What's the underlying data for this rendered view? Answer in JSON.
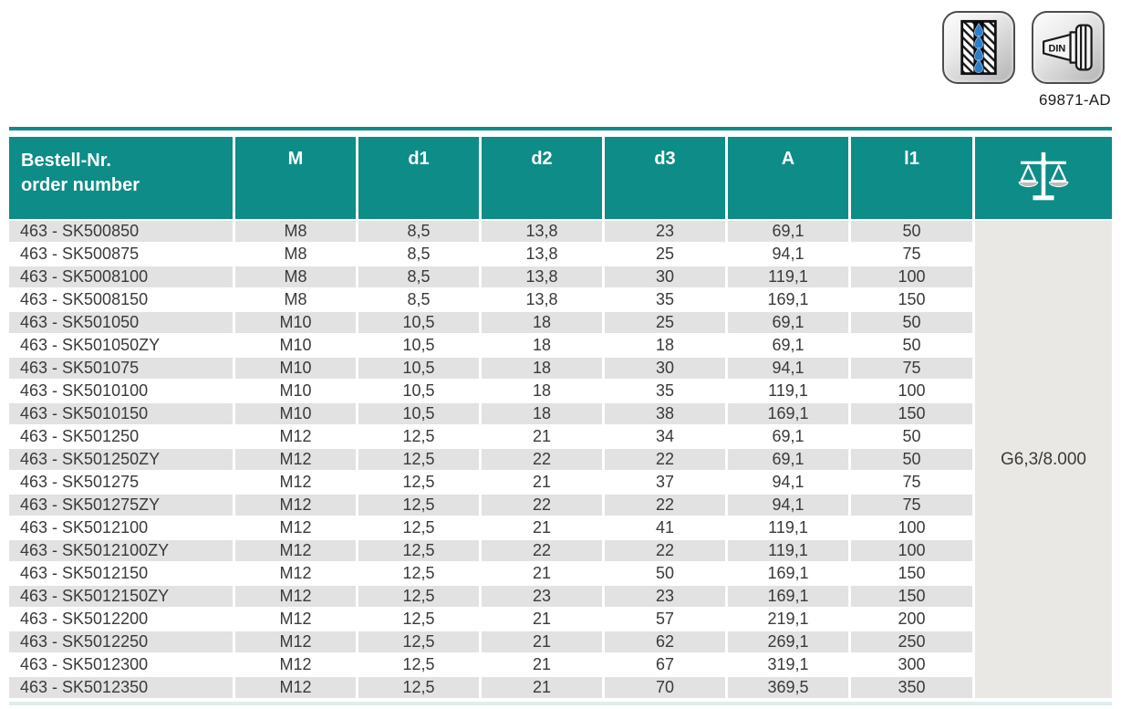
{
  "badges": {
    "din_label": "DIN",
    "din_code": "69871-AD"
  },
  "table": {
    "header": {
      "order_col_line1": "Bestell-Nr.",
      "order_col_line2": "order number",
      "dimension_cols": [
        "M",
        "d1",
        "d2",
        "d3",
        "A",
        "l1"
      ]
    },
    "weight_class": "G6,3/8.000",
    "rows": [
      [
        "463 - SK500850",
        "M8",
        "8,5",
        "13,8",
        "23",
        "69,1",
        "50"
      ],
      [
        "463 - SK500875",
        "M8",
        "8,5",
        "13,8",
        "25",
        "94,1",
        "75"
      ],
      [
        "463 - SK5008100",
        "M8",
        "8,5",
        "13,8",
        "30",
        "119,1",
        "100"
      ],
      [
        "463 - SK5008150",
        "M8",
        "8,5",
        "13,8",
        "35",
        "169,1",
        "150"
      ],
      [
        "463 - SK501050",
        "M10",
        "10,5",
        "18",
        "25",
        "69,1",
        "50"
      ],
      [
        "463 - SK501050ZY",
        "M10",
        "10,5",
        "18",
        "18",
        "69,1",
        "50"
      ],
      [
        "463 - SK501075",
        "M10",
        "10,5",
        "18",
        "30",
        "94,1",
        "75"
      ],
      [
        "463 - SK5010100",
        "M10",
        "10,5",
        "18",
        "35",
        "119,1",
        "100"
      ],
      [
        "463 - SK5010150",
        "M10",
        "10,5",
        "18",
        "38",
        "169,1",
        "150"
      ],
      [
        "463 - SK501250",
        "M12",
        "12,5",
        "21",
        "34",
        "69,1",
        "50"
      ],
      [
        "463 - SK501250ZY",
        "M12",
        "12,5",
        "22",
        "22",
        "69,1",
        "50"
      ],
      [
        "463 - SK501275",
        "M12",
        "12,5",
        "21",
        "37",
        "94,1",
        "75"
      ],
      [
        "463 - SK501275ZY",
        "M12",
        "12,5",
        "22",
        "22",
        "94,1",
        "75"
      ],
      [
        "463 - SK5012100",
        "M12",
        "12,5",
        "21",
        "41",
        "119,1",
        "100"
      ],
      [
        "463 - SK5012100ZY",
        "M12",
        "12,5",
        "22",
        "22",
        "119,1",
        "100"
      ],
      [
        "463 - SK5012150",
        "M12",
        "12,5",
        "21",
        "50",
        "169,1",
        "150"
      ],
      [
        "463 - SK5012150ZY",
        "M12",
        "12,5",
        "23",
        "23",
        "169,1",
        "150"
      ],
      [
        "463 - SK5012200",
        "M12",
        "12,5",
        "21",
        "57",
        "219,1",
        "200"
      ],
      [
        "463 - SK5012250",
        "M12",
        "12,5",
        "21",
        "62",
        "269,1",
        "250"
      ],
      [
        "463 - SK5012300",
        "M12",
        "12,5",
        "21",
        "67",
        "319,1",
        "300"
      ],
      [
        "463 - SK5012350",
        "M12",
        "12,5",
        "21",
        "70",
        "369,5",
        "350"
      ]
    ]
  },
  "colors": {
    "teal": "#0E8C87",
    "stripe_gray": "#E3E2E2",
    "merged_gray": "#E9E8E5",
    "text_dark": "#3A3A3A"
  }
}
